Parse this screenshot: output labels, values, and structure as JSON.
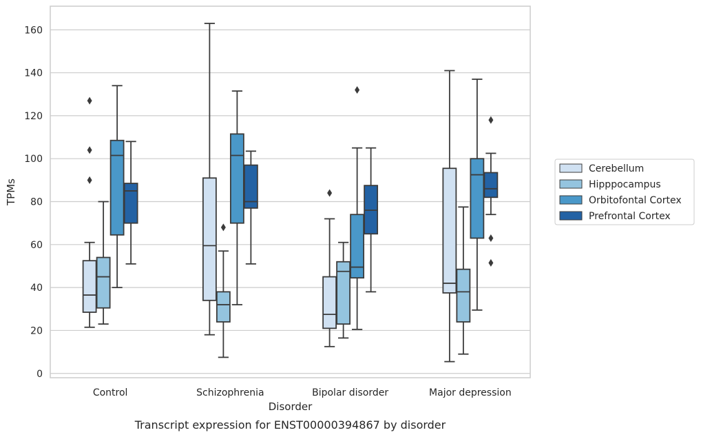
{
  "chart_data": {
    "type": "boxplot",
    "caption": "Transcript expression for ENST00000394867 by disorder",
    "xlabel": "Disorder",
    "ylabel": "TPMs",
    "ylim": [
      -2,
      171
    ],
    "yticks": [
      0,
      20,
      40,
      60,
      80,
      100,
      120,
      140,
      160
    ],
    "grid": "horizontal",
    "legend_position": "right",
    "categories": [
      "Control",
      "Schizophrenia",
      "Bipolar disorder",
      "Major depression"
    ],
    "series": [
      {
        "name": "Cerebellum",
        "color": "#d0e1f2",
        "boxes": [
          {
            "whislo": 21.5,
            "q1": 28.5,
            "med": 36.5,
            "q3": 52.5,
            "whishi": 61,
            "fliers": [
              90,
              104,
              127
            ]
          },
          {
            "whislo": 18,
            "q1": 34,
            "med": 59.5,
            "q3": 91,
            "whishi": 163,
            "fliers": []
          },
          {
            "whislo": 12.5,
            "q1": 21,
            "med": 27.5,
            "q3": 45,
            "whishi": 72,
            "fliers": [
              84
            ]
          },
          {
            "whislo": 5.5,
            "q1": 37.5,
            "med": 42,
            "q3": 95.5,
            "whishi": 141,
            "fliers": []
          }
        ]
      },
      {
        "name": "Hipppocampus",
        "color": "#94c4df",
        "boxes": [
          {
            "whislo": 23,
            "q1": 30.5,
            "med": 45,
            "q3": 54,
            "whishi": 80,
            "fliers": []
          },
          {
            "whislo": 7.5,
            "q1": 24,
            "med": 32,
            "q3": 38,
            "whishi": 57,
            "fliers": [
              68
            ]
          },
          {
            "whislo": 16.5,
            "q1": 23,
            "med": 47.5,
            "q3": 52,
            "whishi": 61,
            "fliers": []
          },
          {
            "whislo": 9,
            "q1": 24,
            "med": 38,
            "q3": 48.5,
            "whishi": 77.5,
            "fliers": []
          }
        ]
      },
      {
        "name": "Orbitofontal Cortex",
        "color": "#4a98c9",
        "boxes": [
          {
            "whislo": 40,
            "q1": 64.5,
            "med": 101.5,
            "q3": 108.5,
            "whishi": 134,
            "fliers": []
          },
          {
            "whislo": 32,
            "q1": 70,
            "med": 101.5,
            "q3": 111.5,
            "whishi": 131.5,
            "fliers": []
          },
          {
            "whislo": 20.5,
            "q1": 44.5,
            "med": 49.5,
            "q3": 74,
            "whishi": 105,
            "fliers": [
              132
            ]
          },
          {
            "whislo": 29.5,
            "q1": 63,
            "med": 92.5,
            "q3": 100,
            "whishi": 137,
            "fliers": []
          }
        ]
      },
      {
        "name": "Prefrontal Cortex",
        "color": "#2362a4",
        "boxes": [
          {
            "whislo": 51,
            "q1": 70,
            "med": 85,
            "q3": 88.5,
            "whishi": 108,
            "fliers": []
          },
          {
            "whislo": 51,
            "q1": 77,
            "med": 80,
            "q3": 97,
            "whishi": 103.5,
            "fliers": []
          },
          {
            "whislo": 38,
            "q1": 65,
            "med": 76,
            "q3": 87.5,
            "whishi": 105,
            "fliers": []
          },
          {
            "whislo": 74,
            "q1": 82,
            "med": 86,
            "q3": 93.5,
            "whishi": 102.5,
            "fliers": [
              51.5,
              63,
              118
            ]
          }
        ]
      }
    ]
  }
}
